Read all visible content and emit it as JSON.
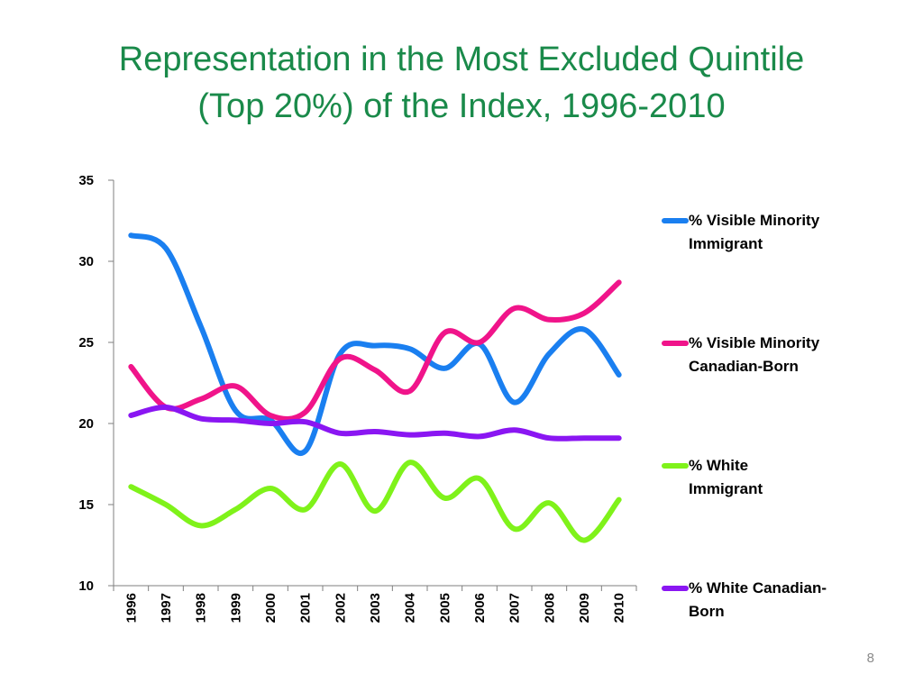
{
  "title_lines": [
    "Representation in the Most Excluded Quintile",
    "(Top 20%) of the Index, 1996-2010"
  ],
  "page_number": "8",
  "chart_data": {
    "type": "line",
    "x": [
      "1996",
      "1997",
      "1998",
      "1999",
      "2000",
      "2001",
      "2002",
      "2003",
      "2004",
      "2005",
      "2006",
      "2007",
      "2008",
      "2009",
      "2010"
    ],
    "ylim": [
      10,
      35
    ],
    "yticks": [
      10,
      15,
      20,
      25,
      30,
      35
    ],
    "grid": false,
    "legend_position": "right",
    "series": [
      {
        "name": "% Visible Minority Immigrant",
        "color": "#1a7ff0",
        "values": [
          31.6,
          30.8,
          26.0,
          20.8,
          20.2,
          18.3,
          24.3,
          24.8,
          24.6,
          23.4,
          24.9,
          21.3,
          24.3,
          25.8,
          23.0
        ]
      },
      {
        "name": "% Visible Minority Canadian-Born",
        "color": "#f0148a",
        "values": [
          23.5,
          21.0,
          21.5,
          22.3,
          20.5,
          20.7,
          24.0,
          23.3,
          22.0,
          25.6,
          25.0,
          27.1,
          26.4,
          26.8,
          28.7
        ]
      },
      {
        "name": "% White Immigrant",
        "color": "#7ff21a",
        "values": [
          16.1,
          15.0,
          13.7,
          14.7,
          16.0,
          14.7,
          17.5,
          14.6,
          17.6,
          15.4,
          16.6,
          13.5,
          15.1,
          12.8,
          15.3
        ]
      },
      {
        "name": "% White Canadian-Born",
        "color": "#8a16f2",
        "values": [
          20.5,
          21.0,
          20.3,
          20.2,
          20.0,
          20.1,
          19.4,
          19.5,
          19.3,
          19.4,
          19.2,
          19.6,
          19.1,
          19.1,
          19.1
        ]
      }
    ]
  }
}
